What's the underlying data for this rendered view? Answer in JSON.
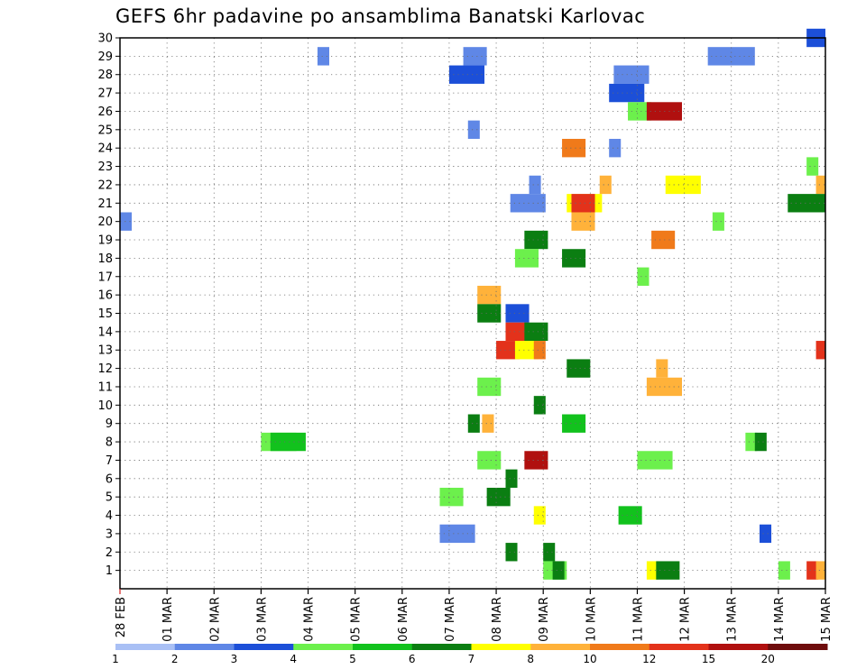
{
  "title": "GEFS 6hr padavine po ansamblima Banatski Karlovac",
  "chart_data": {
    "type": "heatmap",
    "title": "GEFS 6hr padavine po ansamblima Banatski Karlovac",
    "x_tick_labels": [
      "28 FEB",
      "01 MAR",
      "02 MAR",
      "03 MAR",
      "04 MAR",
      "05 MAR",
      "06 MAR",
      "07 MAR",
      "08 MAR",
      "09 MAR",
      "10 MAR",
      "11 MAR",
      "12 MAR",
      "13 MAR",
      "14 MAR",
      "15 MAR"
    ],
    "y_tick_labels": [
      "1",
      "2",
      "3",
      "4",
      "5",
      "6",
      "7",
      "8",
      "9",
      "10",
      "11",
      "12",
      "13",
      "14",
      "15",
      "16",
      "17",
      "18",
      "19",
      "20",
      "21",
      "22",
      "23",
      "24",
      "25",
      "26",
      "27",
      "28",
      "29",
      "30"
    ],
    "xlim_days": [
      0,
      15
    ],
    "ylim": [
      0,
      30
    ],
    "grid": true,
    "steps_per_day": 4,
    "colorbar": {
      "labels": [
        "1",
        "2",
        "3",
        "4",
        "5",
        "6",
        "7",
        "8",
        "10",
        "12",
        "15",
        "20"
      ],
      "colors": [
        "#a9c0f5",
        "#5f87e6",
        "#1c4fd8",
        "#6cf04c",
        "#12c21d",
        "#0b7e12",
        "#ffff00",
        "#ffb23a",
        "#f07a1a",
        "#e3321b",
        "#b0100f",
        "#6e0c0c"
      ]
    },
    "cells": [
      [
        30,
        14.6,
        3,
        2
      ],
      [
        29,
        4.2,
        1,
        1
      ],
      [
        29,
        7.3,
        2,
        1
      ],
      [
        29,
        12.5,
        4,
        1
      ],
      [
        28,
        7.0,
        3,
        2
      ],
      [
        28,
        10.5,
        3,
        1
      ],
      [
        27,
        10.4,
        3,
        2
      ],
      [
        26,
        10.8,
        2,
        3
      ],
      [
        26,
        11.2,
        3,
        10
      ],
      [
        25,
        7.4,
        1,
        1
      ],
      [
        24,
        9.4,
        2,
        8
      ],
      [
        24,
        10.4,
        1,
        1
      ],
      [
        23,
        14.6,
        1,
        3
      ],
      [
        22,
        8.7,
        1,
        1
      ],
      [
        22,
        10.2,
        1,
        7
      ],
      [
        22,
        11.6,
        3,
        6
      ],
      [
        22,
        14.8,
        1,
        7
      ],
      [
        21,
        8.3,
        3,
        1
      ],
      [
        21,
        9.5,
        3,
        6
      ],
      [
        21,
        9.6,
        2,
        9
      ],
      [
        21,
        14.2,
        4,
        5
      ],
      [
        20,
        0.0,
        1,
        1
      ],
      [
        20,
        9.6,
        2,
        7
      ],
      [
        20,
        12.6,
        1,
        3
      ],
      [
        19,
        8.6,
        2,
        5
      ],
      [
        19,
        11.3,
        2,
        8
      ],
      [
        18,
        8.4,
        2,
        3
      ],
      [
        18,
        9.4,
        2,
        5
      ],
      [
        17,
        11.0,
        1,
        3
      ],
      [
        16,
        7.6,
        2,
        7
      ],
      [
        15,
        7.6,
        2,
        5
      ],
      [
        15,
        8.2,
        2,
        2
      ],
      [
        14,
        8.2,
        2,
        9
      ],
      [
        14,
        8.6,
        2,
        5
      ],
      [
        13,
        8.0,
        2,
        9
      ],
      [
        13,
        8.4,
        2,
        6
      ],
      [
        13,
        8.8,
        1,
        8
      ],
      [
        13,
        14.8,
        1,
        9
      ],
      [
        12,
        9.5,
        2,
        5
      ],
      [
        12,
        11.4,
        1,
        7
      ],
      [
        11,
        11.2,
        3,
        7
      ],
      [
        11,
        7.6,
        2,
        3
      ],
      [
        10,
        8.8,
        1,
        5
      ],
      [
        9,
        7.4,
        1,
        5
      ],
      [
        9,
        7.7,
        1,
        7
      ],
      [
        9,
        9.4,
        2,
        4
      ],
      [
        8,
        3.0,
        3,
        3
      ],
      [
        8,
        3.2,
        3,
        4
      ],
      [
        8,
        13.3,
        1,
        3
      ],
      [
        8,
        13.5,
        1,
        5
      ],
      [
        7,
        7.6,
        2,
        3
      ],
      [
        7,
        8.6,
        2,
        10
      ],
      [
        7,
        11.0,
        3,
        3
      ],
      [
        6,
        8.2,
        1,
        5
      ],
      [
        5,
        6.8,
        2,
        3
      ],
      [
        5,
        7.8,
        2,
        5
      ],
      [
        4,
        8.8,
        1,
        6
      ],
      [
        4,
        10.6,
        2,
        4
      ],
      [
        3,
        6.8,
        3,
        1
      ],
      [
        3,
        13.6,
        1,
        2
      ],
      [
        2,
        8.2,
        1,
        5
      ],
      [
        2,
        9.0,
        1,
        5
      ],
      [
        1,
        9.0,
        2,
        3
      ],
      [
        1,
        9.2,
        1,
        5
      ],
      [
        1,
        11.2,
        1,
        6
      ],
      [
        1,
        11.4,
        2,
        5
      ],
      [
        1,
        14.0,
        1,
        3
      ],
      [
        1,
        14.6,
        1,
        9
      ],
      [
        1,
        14.8,
        1,
        7
      ]
    ]
  }
}
